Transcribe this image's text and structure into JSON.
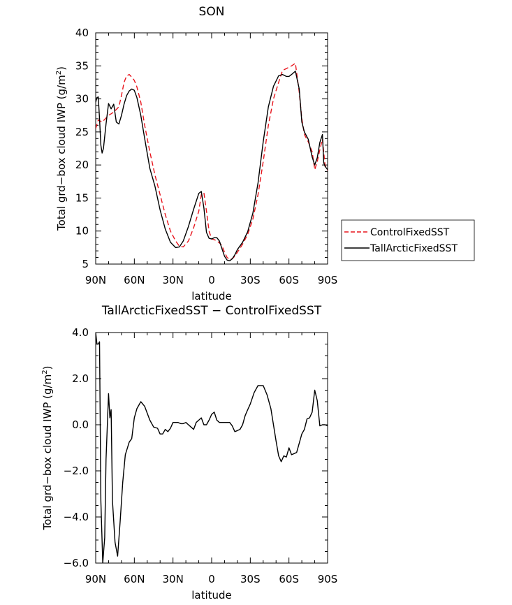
{
  "colors": {
    "control": "#e8141c",
    "tall": "#000000",
    "axes": "#000000"
  },
  "chart_data": [
    {
      "type": "line",
      "title": "SON",
      "xlabel": "latitude",
      "ylabel_main": "Total grd−box cloud IWP (g/m",
      "ylabel_sup": "2",
      "ylabel_close": ")",
      "xlim": [
        90,
        -90
      ],
      "ylim": [
        5,
        40
      ],
      "x_ticks": [
        90,
        60,
        30,
        0,
        -30,
        -60,
        -90
      ],
      "x_tick_labels": [
        "90N",
        "60N",
        "30N",
        "0",
        "30S",
        "60S",
        "90S"
      ],
      "y_ticks": [
        5,
        10,
        15,
        20,
        25,
        30,
        35,
        40
      ],
      "y_tick_labels": [
        "5",
        "10",
        "15",
        "20",
        "25",
        "30",
        "35",
        "40"
      ],
      "legend_position": "right",
      "series": [
        {
          "name": "ControlFixedSST",
          "style": "dashed",
          "x": [
            90,
            88,
            85,
            80,
            76,
            72,
            70,
            68,
            66,
            64,
            62,
            60,
            58,
            55,
            52,
            48,
            44,
            40,
            36,
            32,
            28,
            25,
            22,
            18,
            14,
            10,
            8,
            6,
            4,
            2,
            0,
            -2,
            -4,
            -6,
            -8,
            -10,
            -12,
            -14,
            -16,
            -18,
            -20,
            -24,
            -28,
            -32,
            -36,
            -40,
            -44,
            -48,
            -52,
            -55,
            -58,
            -60,
            -62,
            -65,
            -68,
            -70,
            -72,
            -75,
            -78,
            -80,
            -82,
            -84,
            -86,
            -88,
            -90
          ],
          "values": [
            25.5,
            26.8,
            26.5,
            27.5,
            28,
            28.8,
            30.5,
            32.5,
            33.5,
            33.7,
            33.3,
            32.8,
            31.8,
            29.5,
            26,
            22,
            18.5,
            15.5,
            12.5,
            10,
            8.5,
            7.7,
            7.6,
            8.5,
            10.5,
            13,
            15.5,
            15.8,
            13,
            10,
            8.8,
            8.7,
            8.5,
            8.2,
            7.8,
            6.8,
            6,
            5.7,
            5.8,
            6.2,
            6.8,
            8,
            9.5,
            11.8,
            15.5,
            20.5,
            26,
            30,
            32.5,
            34.3,
            34.6,
            34.8,
            35,
            35.4,
            31,
            27,
            24.6,
            23.5,
            22,
            19.3,
            20.5,
            22.3,
            23.9,
            20,
            19.2
          ]
        },
        {
          "name": "TallArcticFixedSST",
          "style": "solid",
          "x": [
            90,
            89,
            88,
            87,
            86,
            85,
            84,
            82,
            80,
            78,
            76,
            74,
            72,
            70,
            68,
            66,
            64,
            62,
            60,
            58,
            55,
            52,
            48,
            44,
            40,
            36,
            32,
            28,
            25,
            22,
            18,
            14,
            10,
            8,
            6,
            4,
            2,
            0,
            -2,
            -4,
            -6,
            -8,
            -10,
            -12,
            -14,
            -16,
            -18,
            -20,
            -24,
            -28,
            -32,
            -36,
            -40,
            -44,
            -48,
            -52,
            -55,
            -58,
            -60,
            -62,
            -65,
            -68,
            -70,
            -72,
            -75,
            -78,
            -80,
            -82,
            -84,
            -86,
            -87,
            -88,
            -90
          ],
          "values": [
            29.5,
            30.2,
            30.3,
            27,
            23,
            21.8,
            22.5,
            26.2,
            29.3,
            28.5,
            29.2,
            26.5,
            26.2,
            27.5,
            29.2,
            30.5,
            31.2,
            31.5,
            31.3,
            30.2,
            27.5,
            24,
            19.5,
            16.8,
            13.2,
            10.3,
            8.3,
            7.5,
            7.6,
            8.5,
            10.7,
            13.3,
            15.7,
            16,
            13.5,
            9.8,
            8.9,
            8.8,
            9,
            9,
            8.5,
            7.3,
            6.2,
            5.6,
            5.5,
            5.8,
            6.4,
            7.2,
            8.3,
            9.9,
            12.7,
            17.3,
            23.5,
            28.8,
            31.9,
            33.5,
            33.7,
            33.4,
            33.4,
            33.7,
            34.2,
            31.5,
            26.5,
            25,
            23.9,
            21.2,
            20,
            21.1,
            23.4,
            24.6,
            20.3,
            19.8,
            19.3
          ]
        }
      ]
    },
    {
      "type": "line",
      "title": "TallArcticFixedSST − ControlFixedSST",
      "xlabel": "latitude",
      "ylabel_main": "Total grd−box cloud IWP (g/m",
      "ylabel_sup": "2",
      "ylabel_close": ")",
      "xlim": [
        90,
        -90
      ],
      "ylim": [
        -6,
        4
      ],
      "x_ticks": [
        90,
        60,
        30,
        0,
        -30,
        -60,
        -90
      ],
      "x_tick_labels": [
        "90N",
        "60N",
        "30N",
        "0",
        "30S",
        "60S",
        "90S"
      ],
      "y_ticks": [
        -6,
        -4,
        -2,
        0,
        2,
        4
      ],
      "y_tick_labels": [
        "−6.0",
        "−4.0",
        "−2.0",
        "0.0",
        "2.0",
        "4.0"
      ],
      "series": [
        {
          "style": "solid",
          "x": [
            90,
            89,
            88,
            87,
            86,
            84.5,
            83,
            82,
            80,
            79,
            78,
            77,
            75,
            73,
            71,
            69,
            67,
            64,
            62,
            60,
            58,
            55,
            52,
            48,
            45,
            42,
            40,
            38,
            36,
            34,
            32,
            30,
            28,
            26,
            24,
            22,
            20,
            18,
            16,
            14,
            12,
            10,
            8,
            6,
            4,
            2,
            0,
            -2,
            -4,
            -6,
            -8,
            -10,
            -12,
            -14,
            -16,
            -18,
            -20,
            -22,
            -24,
            -26,
            -28,
            -30,
            -33,
            -36,
            -40,
            -43,
            -46,
            -48,
            -50,
            -52,
            -54,
            -56,
            -58,
            -60,
            -62,
            -64,
            -66,
            -68,
            -70,
            -72,
            -74,
            -76,
            -78,
            -80,
            -82,
            -84,
            -86,
            -88,
            -90
          ],
          "values": [
            4.0,
            3.5,
            3.5,
            3.6,
            -3.3,
            -6.0,
            -4.9,
            -1.5,
            1.35,
            0.3,
            0.65,
            -3.3,
            -5.1,
            -5.7,
            -4.2,
            -2.5,
            -1.3,
            -0.75,
            -0.6,
            0.3,
            0.7,
            1.0,
            0.8,
            0.2,
            -0.1,
            -0.15,
            -0.4,
            -0.4,
            -0.2,
            -0.3,
            -0.15,
            0.1,
            0.1,
            0.1,
            0.05,
            0.05,
            0.1,
            0.0,
            -0.1,
            -0.2,
            0.1,
            0.2,
            0.3,
            0.0,
            0.0,
            0.2,
            0.45,
            0.55,
            0.2,
            0.1,
            0.1,
            0.1,
            0.1,
            0.1,
            -0.05,
            -0.3,
            -0.25,
            -0.2,
            0.0,
            0.4,
            0.65,
            0.9,
            1.4,
            1.7,
            1.7,
            1.3,
            0.7,
            0.0,
            -0.7,
            -1.35,
            -1.6,
            -1.35,
            -1.4,
            -1.0,
            -1.3,
            -1.25,
            -1.2,
            -0.8,
            -0.4,
            -0.2,
            0.25,
            0.3,
            0.55,
            1.5,
            1.05,
            -0.05,
            0.0,
            0.0,
            -0.05
          ]
        }
      ]
    }
  ]
}
